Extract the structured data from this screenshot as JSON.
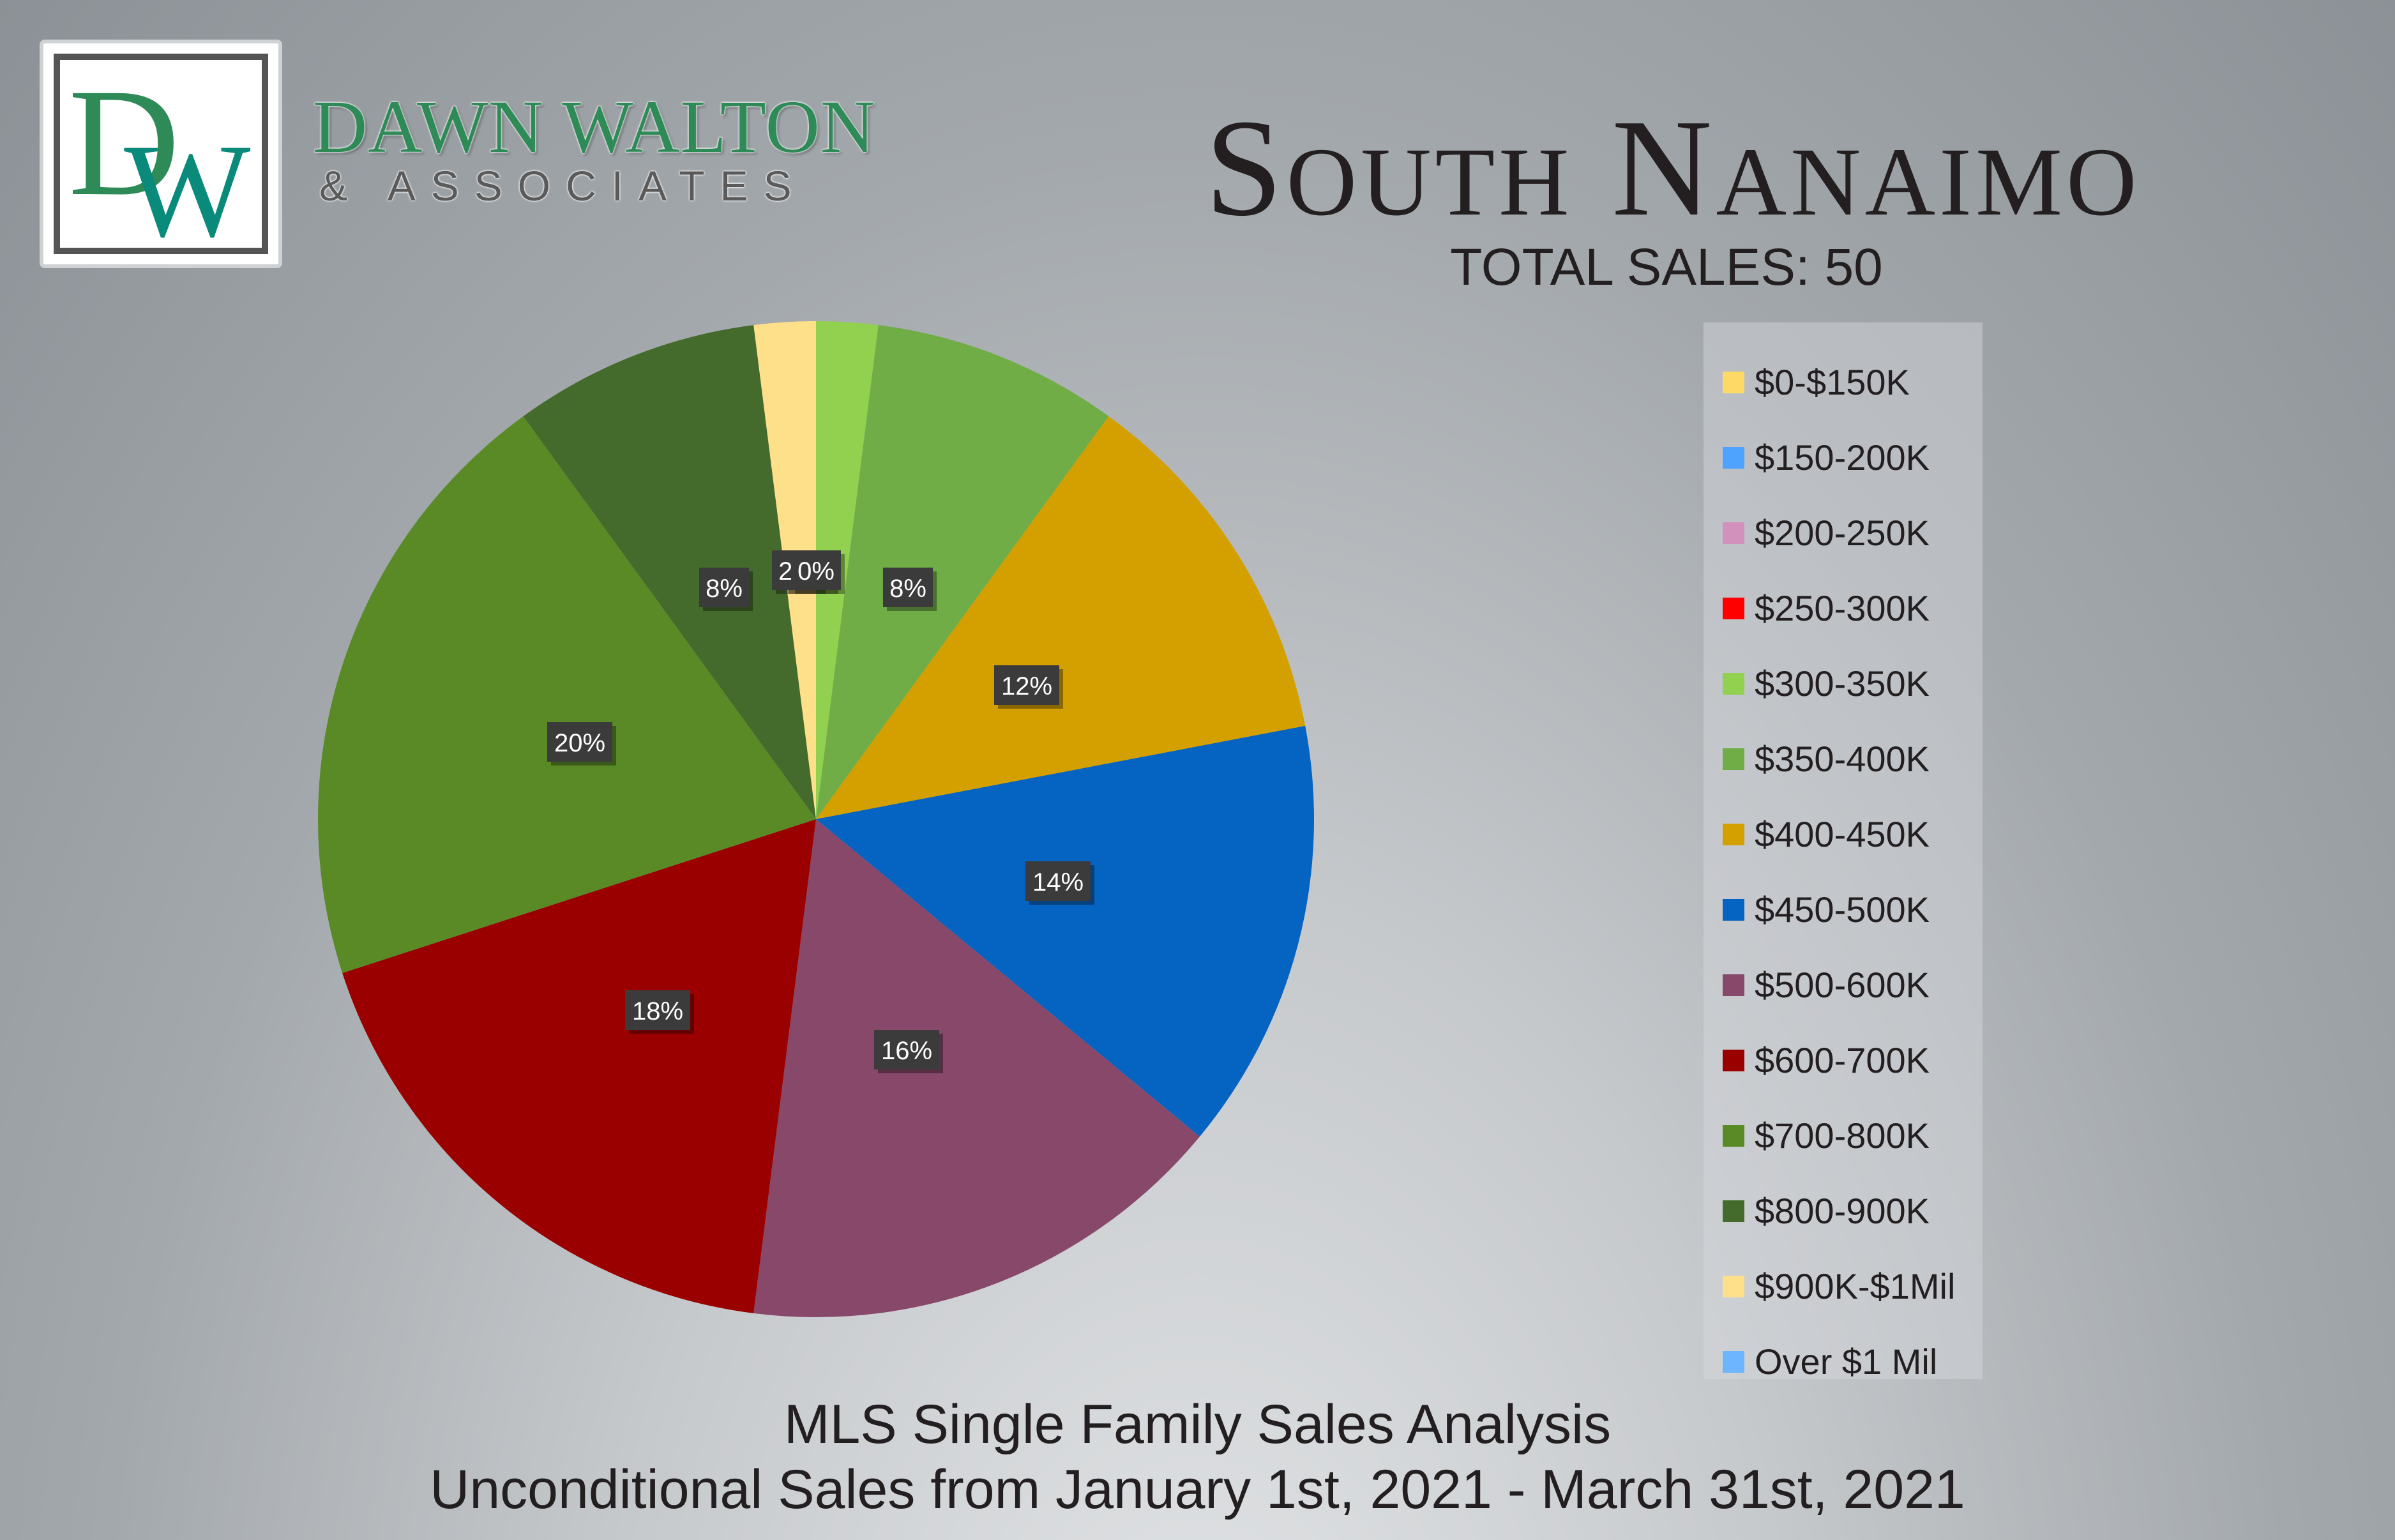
{
  "brand": {
    "logo_letters": "DW",
    "name": "DAWN WALTON",
    "sub": "& ASSOCIATES",
    "colors": {
      "d": "#2e8b57",
      "w": "#0a8a7a"
    }
  },
  "header": {
    "title": "South Nanaimo",
    "total_sales": "TOTAL SALES: 50"
  },
  "footer": {
    "line1": "MLS Single Family Sales Analysis",
    "line2": "Unconditional Sales from January 1st, 2021 - March 31st, 2021"
  },
  "chart_data": {
    "type": "pie",
    "categories": [
      "$0-$150K",
      "$150-200K",
      "$200-250K",
      "$250-300K",
      "$300-350K",
      "$350-400K",
      "$400-450K",
      "$450-500K",
      "$500-600K",
      "$600-700K",
      "$700-800K",
      "$800-900K",
      "$900K-$1Mil",
      "Over $1 Mil"
    ],
    "values": [
      0,
      0,
      0,
      0,
      2,
      8,
      12,
      14,
      16,
      18,
      20,
      8,
      2,
      0
    ],
    "labels": [
      "0%",
      "",
      "",
      "",
      "2%",
      "8%",
      "12%",
      "14%",
      "16%",
      "18%",
      "20%",
      "8%",
      "2%",
      ""
    ],
    "colors": [
      "#ffd966",
      "#4da3ff",
      "#d291bc",
      "#ff0000",
      "#92d050",
      "#70ad47",
      "#d4a000",
      "#0563c1",
      "#87486a",
      "#9b0000",
      "#5a8a25",
      "#446b2c",
      "#ffe08a",
      "#6eb5ff"
    ],
    "legend_position": "right"
  }
}
